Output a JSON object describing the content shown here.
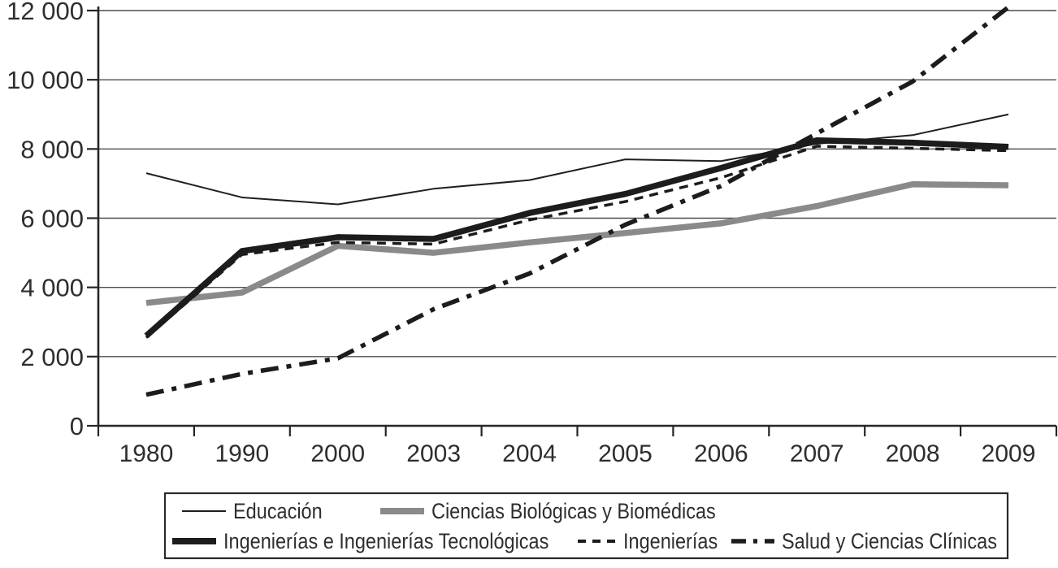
{
  "chart_data": {
    "type": "line",
    "categories": [
      "1980",
      "1990",
      "2000",
      "2003",
      "2004",
      "2005",
      "2006",
      "2007",
      "2008",
      "2009"
    ],
    "series": [
      {
        "name": "Educación",
        "style": "thin-solid",
        "color": "#1f1f1f",
        "width": 2,
        "dash": "",
        "values": [
          7300,
          6600,
          6400,
          6850,
          7100,
          7700,
          7650,
          8150,
          8400,
          9000
        ]
      },
      {
        "name": "Ciencias Biológicas y Biomédicas",
        "style": "thick-solid",
        "color": "#8a8a8a",
        "width": 7.5,
        "dash": "",
        "values": [
          3550,
          3850,
          5200,
          5000,
          5300,
          5570,
          5850,
          6350,
          6980,
          6950
        ]
      },
      {
        "name": "Ingenierías e Ingenierías Tecnológicas",
        "style": "thick-solid",
        "color": "#1c1c1c",
        "width": 7.5,
        "dash": "",
        "values": [
          2600,
          5050,
          5450,
          5400,
          6150,
          6700,
          7450,
          8250,
          8180,
          8060
        ]
      },
      {
        "name": "Ingenierías",
        "style": "dashed",
        "color": "#1c1c1c",
        "width": 3.5,
        "dash": "11 8",
        "values": [
          2550,
          4950,
          5300,
          5250,
          5950,
          6480,
          7170,
          8080,
          8020,
          7950
        ]
      },
      {
        "name": "Salud y Ciencias Clínicas",
        "style": "dash-dot",
        "color": "#1c1c1c",
        "width": 5.5,
        "dash": "22 10 6 10",
        "values": [
          900,
          1500,
          1950,
          3370,
          4400,
          5810,
          6930,
          8450,
          9950,
          12100
        ]
      }
    ],
    "ylim": [
      0,
      12000
    ],
    "ytick_interval": 2000,
    "ytick_labels": [
      "0",
      "2 000",
      "4 000",
      "6 000",
      "8 000",
      "10 000",
      "12 000"
    ],
    "grid": "horizontal",
    "legend_position": "bottom"
  }
}
